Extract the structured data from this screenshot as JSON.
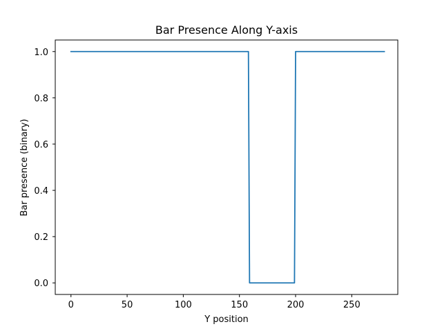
{
  "chart_data": {
    "type": "line",
    "title": "Bar Presence Along Y-axis",
    "xlabel": "Y position",
    "ylabel": "Bar presence (binary)",
    "xlim": [
      -14,
      291
    ],
    "ylim": [
      -0.05,
      1.05
    ],
    "xticks": [
      0,
      50,
      100,
      150,
      200,
      250
    ],
    "yticks": [
      0.0,
      0.2,
      0.4,
      0.6,
      0.8,
      1.0
    ],
    "xtick_labels": [
      "0",
      "50",
      "100",
      "150",
      "200",
      "250"
    ],
    "ytick_labels": [
      "0.0",
      "0.2",
      "0.4",
      "0.6",
      "0.8",
      "1.0"
    ],
    "grid": false,
    "series": [
      {
        "color": "#1f77b4",
        "x": [
          0,
          158,
          159,
          199,
          200,
          279
        ],
        "y": [
          1,
          1,
          0,
          0,
          1,
          1
        ]
      }
    ]
  }
}
